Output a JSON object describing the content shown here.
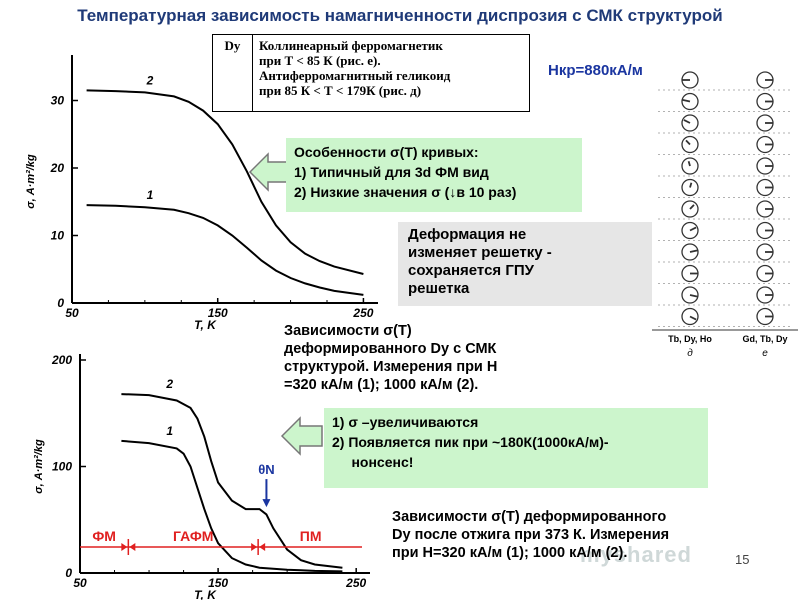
{
  "title": "Температурная зависимость намагниченности диспрозия с СМК структурой",
  "table": {
    "element": "Dy",
    "description_lines": [
      "Коллинеарный ферромагнетик",
      "при Т < 85 К (рис. е).",
      "Антиферромагнитный геликоид",
      "при 85 К < Т < 179К (рис. д)"
    ]
  },
  "hcr_label": "Нкр=880кА/м",
  "box1": {
    "lines": [
      "Особенности σ(T) кривых:",
      "1) Типичный для 3d ФМ вид",
      "2) Низкие значения σ (↓в 10 раз)"
    ]
  },
  "box2": {
    "lines": [
      "Деформация не",
      "изменяет решетку -",
      "сохраняется ГПУ",
      "решетка"
    ]
  },
  "text1": {
    "lines": [
      "Зависимости σ(T)",
      "деформированного Dy с СМК",
      "структурой. Измерения при Н",
      "=320 кА/м (1); 1000 кА/м (2)."
    ]
  },
  "box3": {
    "lines": [
      "1) σ –увеличиваются",
      "2) Появляется пик при ~180К(1000кА/м)-",
      "     нонсенс!"
    ]
  },
  "text2": {
    "lines": [
      "Зависимости σ(T) деформированного",
      "Dy после отжига при 373 К. Измерения",
      "при Н=320 кА/м (1); 1000 кА/м (2)."
    ]
  },
  "page_number": "15",
  "watermark": "myshared",
  "spin_diagram": {
    "left_label_line1": "Tb, Dy, Ho",
    "left_label_line2": "д",
    "right_label_line1": "Gd, Tb, Dy",
    "right_label_line2": "е",
    "helix_angles_deg": [
      0,
      20,
      40,
      60,
      80,
      100,
      120,
      140,
      160,
      180,
      200,
      220
    ],
    "colors": {
      "line": "#333333"
    }
  },
  "chart_data": [
    {
      "type": "line",
      "title": "",
      "xlabel": "T, K",
      "ylabel": "σ, A·m²/kg",
      "xlim": [
        50,
        260
      ],
      "ylim": [
        0,
        36
      ],
      "x_ticks": [
        50,
        150,
        250
      ],
      "y_ticks": [
        0,
        10,
        20,
        30
      ],
      "series": [
        {
          "name": "1",
          "x": [
            60,
            80,
            100,
            120,
            130,
            140,
            150,
            160,
            170,
            180,
            190,
            200,
            210,
            220,
            230,
            250
          ],
          "y": [
            14.5,
            14.4,
            14.2,
            13.8,
            13.3,
            12.6,
            11.5,
            10.0,
            8.2,
            6.3,
            4.8,
            3.7,
            2.9,
            2.3,
            1.8,
            1.2
          ]
        },
        {
          "name": "2",
          "x": [
            60,
            80,
            100,
            120,
            130,
            140,
            150,
            160,
            170,
            180,
            190,
            200,
            210,
            220,
            230,
            250
          ],
          "y": [
            31.5,
            31.4,
            31.2,
            30.6,
            29.8,
            28.5,
            26.5,
            23.5,
            19.5,
            15.0,
            11.5,
            9.0,
            7.3,
            6.2,
            5.4,
            4.3
          ]
        }
      ]
    },
    {
      "type": "line",
      "title": "",
      "xlabel": "T, K",
      "ylabel": "σ, A·m²/kg",
      "xlim": [
        50,
        260
      ],
      "ylim": [
        0,
        200
      ],
      "x_ticks": [
        50,
        150,
        250
      ],
      "y_ticks": [
        0,
        100,
        200
      ],
      "series": [
        {
          "name": "1",
          "x": [
            80,
            100,
            120,
            125,
            130,
            135,
            140,
            145,
            150,
            160,
            170,
            180,
            190,
            200,
            210,
            220,
            240
          ],
          "y": [
            124,
            122,
            117,
            112,
            100,
            80,
            60,
            42,
            28,
            14,
            8,
            5,
            4,
            3,
            2.5,
            2,
            1.5
          ]
        },
        {
          "name": "2",
          "x": [
            80,
            100,
            120,
            130,
            135,
            140,
            145,
            150,
            160,
            170,
            180,
            185,
            190,
            200,
            210,
            220,
            240
          ],
          "y": [
            168,
            167,
            162,
            155,
            145,
            128,
            105,
            85,
            68,
            60,
            60,
            55,
            42,
            22,
            12,
            8,
            5
          ]
        }
      ],
      "annotations": [
        {
          "text": "θN",
          "x": 185,
          "y": 60,
          "color": "#1a35a0"
        },
        {
          "text": "ФМ",
          "color": "#e02020",
          "x_range": [
            50,
            85
          ]
        },
        {
          "text": "ГАФМ",
          "color": "#e02020",
          "x_range": [
            85,
            179
          ]
        },
        {
          "text": "ПМ",
          "color": "#e02020",
          "x_range": [
            179,
            260
          ]
        }
      ]
    }
  ]
}
